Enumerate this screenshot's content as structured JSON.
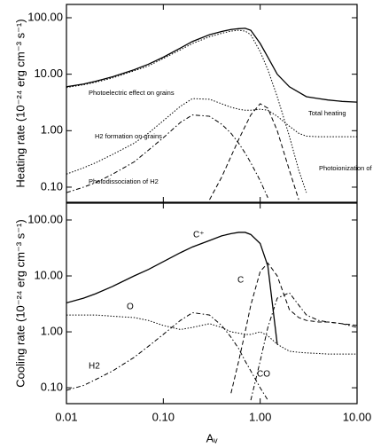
{
  "chart_data": [
    {
      "type": "line",
      "ylabel": "Heating rate (10⁻²⁴ erg cm⁻³ s⁻¹)",
      "log_x": true,
      "log_y": true,
      "x": [
        0.01,
        0.015,
        0.02,
        0.03,
        0.05,
        0.07,
        0.1,
        0.15,
        0.2,
        0.3,
        0.4,
        0.5,
        0.6,
        0.7,
        0.8,
        1.0,
        1.2,
        1.5,
        2,
        2.5,
        3,
        4,
        5,
        7,
        10
      ],
      "xlim": [
        0.01,
        10
      ],
      "ylim": [
        0.054,
        172
      ],
      "yticks": [
        {
          "value": 0.1,
          "label": "0.10"
        },
        {
          "value": 1,
          "label": "1.00"
        },
        {
          "value": 10,
          "label": "10.00"
        },
        {
          "value": 100,
          "label": "100.00"
        }
      ],
      "series": [
        {
          "name": "Total heating",
          "color": "#000000",
          "style": "solid",
          "values": [
            6,
            6.7,
            7.5,
            9,
            12,
            15,
            20,
            29,
            38,
            50,
            57,
            62,
            64,
            65,
            60,
            35,
            20,
            10,
            6,
            4.8,
            4.0,
            3.7,
            3.5,
            3.3,
            3.2
          ]
        },
        {
          "name": "Photoelectric effect on grains",
          "color": "#000000",
          "style": "dotted",
          "values": [
            5.8,
            6.5,
            7.2,
            8.6,
            11.5,
            14,
            19,
            27,
            35,
            46,
            53,
            58,
            60,
            58,
            50,
            25,
            12,
            4,
            0.8,
            0.2,
            0.08,
            null,
            null,
            null,
            null
          ]
        },
        {
          "name": "H2 formation on grains",
          "color": "#000000",
          "style": "dotted",
          "values": [
            0.17,
            0.22,
            0.27,
            0.38,
            0.6,
            0.9,
            1.5,
            2.7,
            3.7,
            3.6,
            3.0,
            2.6,
            2.4,
            2.3,
            2.3,
            2.4,
            2.3,
            1.8,
            1.2,
            0.9,
            0.8,
            0.78,
            0.78,
            0.78,
            0.78
          ]
        },
        {
          "name": "Photodissociation of H2",
          "color": "#000000",
          "style": "dashdot",
          "values": [
            0.08,
            0.1,
            0.12,
            0.17,
            0.28,
            0.45,
            0.75,
            1.4,
            1.9,
            1.8,
            1.3,
            0.9,
            0.6,
            0.4,
            0.27,
            0.13,
            0.065,
            null,
            null,
            null,
            null,
            null,
            null,
            null,
            null
          ]
        },
        {
          "name": "Photoionization of C",
          "color": "#000000",
          "style": "dashed",
          "values": [
            null,
            null,
            null,
            null,
            null,
            null,
            null,
            null,
            null,
            0.06,
            0.15,
            0.35,
            0.7,
            1.2,
            1.9,
            3.0,
            2.5,
            1.0,
            0.2,
            0.06,
            null,
            null,
            null,
            null,
            null
          ]
        }
      ]
    },
    {
      "type": "line",
      "ylabel": "Cooling rate (10⁻²⁴ erg cm⁻³ s⁻¹)",
      "xlabel": "Aᵥ",
      "log_x": true,
      "log_y": true,
      "x": [
        0.01,
        0.015,
        0.02,
        0.03,
        0.05,
        0.07,
        0.1,
        0.15,
        0.2,
        0.3,
        0.4,
        0.5,
        0.6,
        0.7,
        0.8,
        1.0,
        1.2,
        1.5,
        2,
        2.5,
        3,
        4,
        5,
        7,
        10
      ],
      "xlim": [
        0.01,
        10
      ],
      "xticks": [
        {
          "value": 0.01,
          "label": "0.01"
        },
        {
          "value": 0.1,
          "label": "0.10"
        },
        {
          "value": 1,
          "label": "1.00"
        },
        {
          "value": 10,
          "label": "10.00"
        }
      ],
      "ylim": [
        0.052,
        200
      ],
      "yticks": [
        {
          "value": 0.1,
          "label": "0.10"
        },
        {
          "value": 1,
          "label": "1.00"
        },
        {
          "value": 10,
          "label": "10.00"
        },
        {
          "value": 100,
          "label": "100.00"
        }
      ],
      "series": [
        {
          "name": "C⁺",
          "color": "#000000",
          "style": "solid",
          "values": [
            3.3,
            4,
            4.8,
            6.5,
            10,
            13,
            18,
            26,
            33,
            43,
            52,
            57,
            60,
            60,
            55,
            38,
            15,
            0.6,
            null,
            null,
            null,
            null,
            null,
            null,
            null
          ]
        },
        {
          "name": "C",
          "color": "#000000",
          "style": "dashed",
          "values": [
            null,
            null,
            null,
            null,
            null,
            null,
            null,
            null,
            null,
            null,
            null,
            0.08,
            0.3,
            1,
            3,
            12,
            17,
            10,
            2.5,
            1.8,
            1.6,
            1.5,
            1.5,
            1.4,
            1.3
          ]
        },
        {
          "name": "O",
          "color": "#000000",
          "style": "dotted",
          "values": [
            2,
            2,
            2,
            1.9,
            1.8,
            1.6,
            1.3,
            1.1,
            1.2,
            1.4,
            1.2,
            1.0,
            0.95,
            0.9,
            0.9,
            1.0,
            0.85,
            0.6,
            0.45,
            0.43,
            0.42,
            0.41,
            0.4,
            0.4,
            0.4
          ]
        },
        {
          "name": "H2",
          "color": "#000000",
          "style": "dashdot",
          "values": [
            0.09,
            0.11,
            0.14,
            0.2,
            0.35,
            0.55,
            0.9,
            1.6,
            2.2,
            2.0,
            1.3,
            0.8,
            0.5,
            0.3,
            0.2,
            0.1,
            0.06,
            null,
            null,
            null,
            null,
            null,
            null,
            null,
            null
          ]
        },
        {
          "name": "CO",
          "color": "#000000",
          "style": "dashdot",
          "values": [
            null,
            null,
            null,
            null,
            null,
            null,
            null,
            null,
            null,
            null,
            null,
            null,
            null,
            null,
            0.06,
            0.3,
            1.2,
            4,
            5,
            3,
            2,
            1.6,
            1.5,
            1.4,
            1.2
          ]
        }
      ]
    }
  ]
}
